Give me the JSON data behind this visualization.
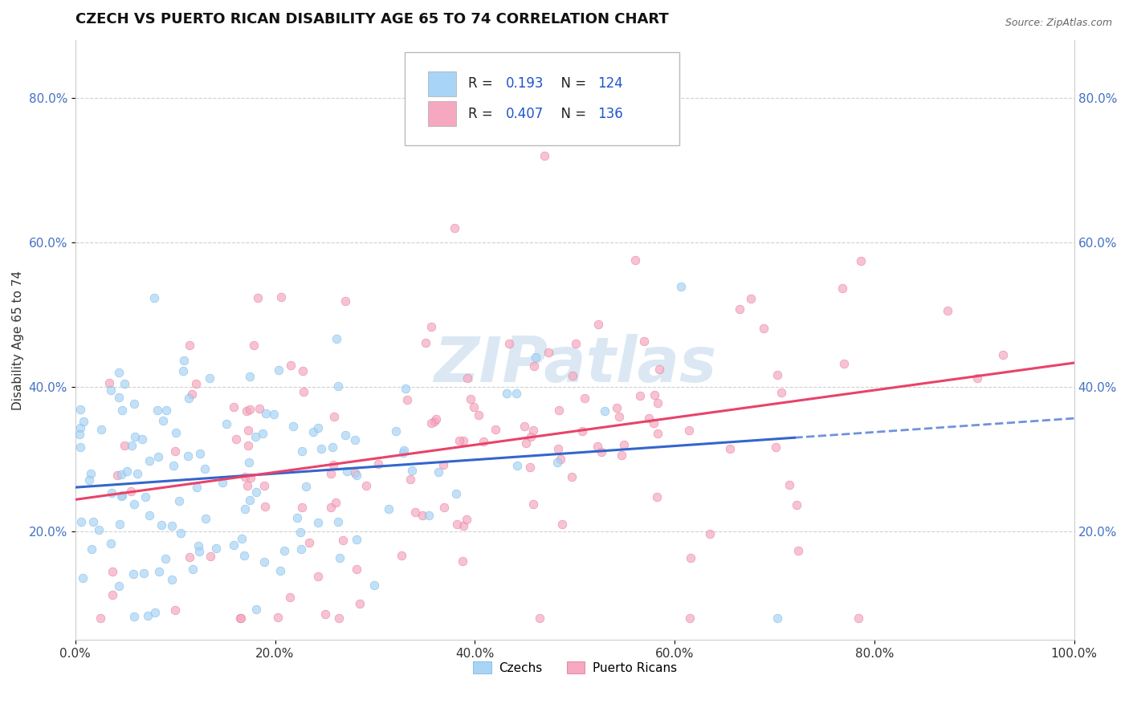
{
  "title": "CZECH VS PUERTO RICAN DISABILITY AGE 65 TO 74 CORRELATION CHART",
  "source": "Source: ZipAtlas.com",
  "ylabel": "Disability Age 65 to 74",
  "xlim": [
    0.0,
    1.0
  ],
  "ylim": [
    0.05,
    0.88
  ],
  "xticks": [
    0.0,
    0.2,
    0.4,
    0.6,
    0.8,
    1.0
  ],
  "xticklabels": [
    "0.0%",
    "20.0%",
    "40.0%",
    "60.0%",
    "80.0%",
    "100.0%"
  ],
  "yticks": [
    0.2,
    0.4,
    0.6,
    0.8
  ],
  "yticklabels": [
    "20.0%",
    "40.0%",
    "60.0%",
    "80.0%"
  ],
  "czech_color": "#A8D4F5",
  "czech_edge_color": "#6AAEE0",
  "puerto_rican_color": "#F5A8C0",
  "puerto_rican_edge_color": "#E06A8A",
  "czech_R": 0.193,
  "czech_N": 124,
  "puerto_rican_R": 0.407,
  "puerto_rican_N": 136,
  "czech_line_color": "#3366CC",
  "puerto_rican_line_color": "#E8436A",
  "watermark": "ZIPatlas",
  "background_color": "#ffffff",
  "grid_color": "#cccccc",
  "legend_label_czech": "Czechs",
  "legend_label_puerto": "Puerto Ricans",
  "title_fontsize": 13,
  "axis_label_fontsize": 11,
  "tick_fontsize": 11,
  "tick_color_y": "#4472C4",
  "tick_color_x": "#333333"
}
